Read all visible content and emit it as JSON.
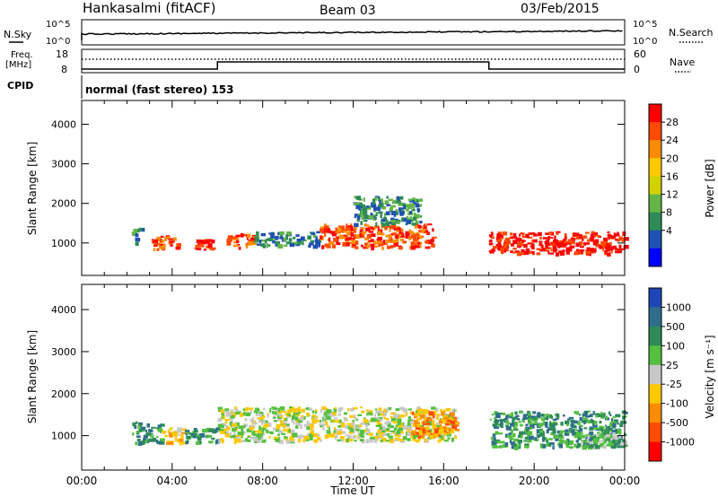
{
  "header": {
    "station": "Hankasalmi (fitACF)",
    "beam": "Beam 03",
    "date": "03/Feb/2015"
  },
  "status_panels": {
    "nsky_label": "N.Sky",
    "nsky_ticks": [
      "10^5",
      "10^0"
    ],
    "nsearch_label": "N.Search",
    "nsearch_ticks": [
      "10^5",
      "10^0"
    ],
    "freq_label_1": "Freq.",
    "freq_label_2": "[MHz]",
    "freq_ticks": [
      "18",
      "8"
    ],
    "nave_label": "Nave",
    "nave_ticks": [
      "60",
      "0"
    ],
    "cpid_label": "CPID",
    "cpid_text": "normal (fast stereo) 153"
  },
  "chart_data": [
    {
      "type": "heatmap",
      "name": "power",
      "ylabel": "Slant Range [km]",
      "yticks": [
        1000,
        2000,
        3000,
        4000
      ],
      "ylim": [
        180,
        4600
      ],
      "xticks": [
        "00:00",
        "04:00",
        "08:00",
        "12:00",
        "16:00",
        "20:00",
        "00:00"
      ],
      "xlim_hours": [
        0,
        24
      ],
      "colorbar_label": "Power [dB]",
      "colorbar_ticks": [
        "28",
        "24",
        "20",
        "16",
        "12",
        "8",
        "4"
      ],
      "colorbar_colors": [
        "#ff0000",
        "#ff4a00",
        "#ff8c00",
        "#ffc800",
        "#d2d200",
        "#64b446",
        "#2e8b57",
        "#1e50b4",
        "#0000ff"
      ],
      "echo_regions_hours_km": [
        {
          "t0": 2.2,
          "t1": 2.6,
          "r0": 900,
          "r1": 1400,
          "level": 6
        },
        {
          "t0": 3.0,
          "t1": 4.2,
          "r0": 850,
          "r1": 1200,
          "level": 1
        },
        {
          "t0": 4.8,
          "t1": 5.8,
          "r0": 850,
          "r1": 1150,
          "level": 0
        },
        {
          "t0": 6.4,
          "t1": 7.6,
          "r0": 900,
          "r1": 1250,
          "level": 1
        },
        {
          "t0": 7.6,
          "t1": 10.5,
          "r0": 950,
          "r1": 1300,
          "level": 6
        },
        {
          "t0": 10.5,
          "t1": 15.5,
          "r0": 900,
          "r1": 1500,
          "level": 1
        },
        {
          "t0": 12.0,
          "t1": 15.0,
          "r0": 1500,
          "r1": 2200,
          "level": 6
        },
        {
          "t0": 18.0,
          "t1": 24.0,
          "r0": 750,
          "r1": 1300,
          "level": 0
        }
      ]
    },
    {
      "type": "heatmap",
      "name": "velocity",
      "xlabel": "Time UT",
      "ylabel": "Slant Range [km]",
      "yticks": [
        1000,
        2000,
        3000,
        4000
      ],
      "ylim": [
        180,
        4600
      ],
      "xticks": [
        "00:00",
        "04:00",
        "08:00",
        "12:00",
        "16:00",
        "20:00",
        "00:00"
      ],
      "xlim_hours": [
        0,
        24
      ],
      "colorbar_label": "Velocity [m s⁻¹]",
      "colorbar_ticks": [
        "1000",
        "500",
        "100",
        "25",
        "-25",
        "-100",
        "-500",
        "-1000"
      ],
      "colorbar_colors": [
        "#1e46b4",
        "#2e6e8c",
        "#2e8b57",
        "#55c040",
        "#c8c8c8",
        "#ffc800",
        "#ff8c00",
        "#ff4a00",
        "#ff0000"
      ],
      "echo_regions_hours_km": [
        {
          "t0": 2.2,
          "t1": 3.5,
          "r0": 850,
          "r1": 1350,
          "level": 2
        },
        {
          "t0": 3.5,
          "t1": 4.5,
          "r0": 850,
          "r1": 1200,
          "level": 5
        },
        {
          "t0": 4.5,
          "t1": 6.0,
          "r0": 850,
          "r1": 1200,
          "level": 2
        },
        {
          "t0": 6.0,
          "t1": 16.5,
          "r0": 900,
          "r1": 1700,
          "level": 4
        },
        {
          "t0": 14.5,
          "t1": 16.5,
          "r0": 1000,
          "r1": 1600,
          "level": 6
        },
        {
          "t0": 18.0,
          "t1": 24.0,
          "r0": 750,
          "r1": 1600,
          "level": 2
        },
        {
          "t0": 22.0,
          "t1": 24.0,
          "r0": 750,
          "r1": 1100,
          "level": 3
        }
      ]
    }
  ]
}
